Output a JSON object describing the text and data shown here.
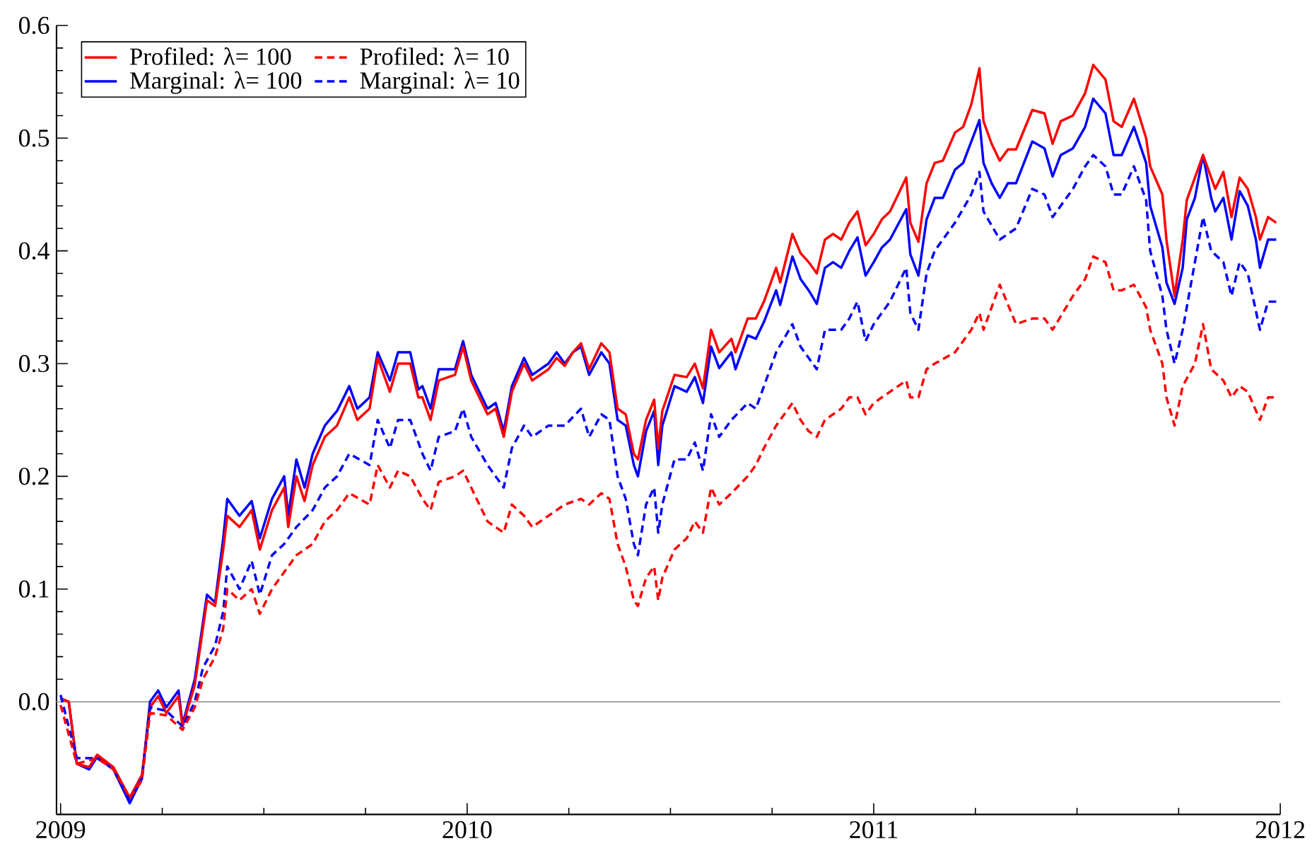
{
  "chart_data": {
    "type": "line",
    "xlim": [
      2008.99,
      2012.0
    ],
    "ylim": [
      -0.1,
      0.6
    ],
    "xticks": [
      2009,
      2010,
      2011,
      2012
    ],
    "yticks": [
      {
        "value": 0.0,
        "label": "0.0"
      },
      {
        "value": 0.1,
        "label": "0.1"
      },
      {
        "value": 0.2,
        "label": "0.2"
      },
      {
        "value": 0.3,
        "label": "0.3"
      },
      {
        "value": 0.4,
        "label": "0.4"
      },
      {
        "value": 0.5,
        "label": "0.5"
      },
      {
        "value": 0.6,
        "label": "0.6"
      }
    ],
    "legend": "top left",
    "ref_lines": [
      {
        "axis": "y",
        "value": 0,
        "color": "#aaaaaa"
      }
    ],
    "series": [
      {
        "name": "Profiled: λ= 100",
        "color": "#ff0000",
        "line_style": "solid",
        "x": [
          2009.0,
          2009.02,
          2009.04,
          2009.07,
          2009.09,
          2009.13,
          2009.17,
          2009.2,
          2009.22,
          2009.24,
          2009.26,
          2009.29,
          2009.3,
          2009.33,
          2009.35,
          2009.36,
          2009.38,
          2009.4,
          2009.41,
          2009.44,
          2009.47,
          2009.49,
          2009.52,
          2009.55,
          2009.56,
          2009.58,
          2009.6,
          2009.62,
          2009.65,
          2009.68,
          2009.71,
          2009.73,
          2009.76,
          2009.78,
          2009.81,
          2009.83,
          2009.86,
          2009.88,
          2009.89,
          2009.91,
          2009.93,
          2009.97,
          2009.99,
          2010.01,
          2010.05,
          2010.07,
          2010.09,
          2010.11,
          2010.14,
          2010.16,
          2010.2,
          2010.22,
          2010.24,
          2010.26,
          2010.28,
          2010.3,
          2010.33,
          2010.35,
          2010.37,
          2010.39,
          2010.41,
          2010.42,
          2010.44,
          2010.46,
          2010.47,
          2010.48,
          2010.51,
          2010.54,
          2010.56,
          2010.58,
          2010.6,
          2010.62,
          2010.65,
          2010.66,
          2010.69,
          2010.71,
          2010.73,
          2010.76,
          2010.77,
          2010.8,
          2010.82,
          2010.84,
          2010.86,
          2010.88,
          2010.9,
          2010.92,
          2010.94,
          2010.96,
          2010.98,
          2011.0,
          2011.02,
          2011.04,
          2011.08,
          2011.09,
          2011.11,
          2011.13,
          2011.15,
          2011.17,
          2011.2,
          2011.22,
          2011.24,
          2011.26,
          2011.27,
          2011.29,
          2011.31,
          2011.33,
          2011.35,
          2011.39,
          2011.42,
          2011.44,
          2011.46,
          2011.49,
          2011.52,
          2011.54,
          2011.57,
          2011.59,
          2011.61,
          2011.64,
          2011.67,
          2011.68,
          2011.71,
          2011.72,
          2011.74,
          2011.76,
          2011.77,
          2011.79,
          2011.81,
          2011.83,
          2011.84,
          2011.86,
          2011.88,
          2011.9,
          2011.92,
          2011.94,
          2011.95,
          2011.97,
          2011.99
        ],
        "values": [
          0.003,
          0.0,
          -0.055,
          -0.058,
          -0.047,
          -0.058,
          -0.085,
          -0.065,
          -0.005,
          0.005,
          -0.01,
          0.005,
          -0.022,
          0.015,
          0.065,
          0.09,
          0.085,
          0.135,
          0.165,
          0.155,
          0.17,
          0.135,
          0.17,
          0.19,
          0.155,
          0.2,
          0.178,
          0.21,
          0.235,
          0.245,
          0.27,
          0.25,
          0.26,
          0.305,
          0.275,
          0.3,
          0.3,
          0.27,
          0.27,
          0.25,
          0.285,
          0.29,
          0.315,
          0.285,
          0.255,
          0.26,
          0.235,
          0.275,
          0.3,
          0.285,
          0.295,
          0.305,
          0.298,
          0.31,
          0.318,
          0.295,
          0.318,
          0.31,
          0.26,
          0.255,
          0.22,
          0.215,
          0.25,
          0.268,
          0.225,
          0.258,
          0.29,
          0.288,
          0.3,
          0.278,
          0.33,
          0.31,
          0.322,
          0.31,
          0.34,
          0.34,
          0.355,
          0.385,
          0.372,
          0.415,
          0.398,
          0.39,
          0.38,
          0.41,
          0.415,
          0.41,
          0.425,
          0.435,
          0.405,
          0.415,
          0.428,
          0.435,
          0.465,
          0.425,
          0.408,
          0.46,
          0.478,
          0.48,
          0.505,
          0.51,
          0.53,
          0.562,
          0.515,
          0.495,
          0.48,
          0.49,
          0.49,
          0.525,
          0.522,
          0.495,
          0.515,
          0.52,
          0.54,
          0.565,
          0.552,
          0.515,
          0.51,
          0.535,
          0.5,
          0.475,
          0.45,
          0.41,
          0.36,
          0.41,
          0.445,
          0.465,
          0.485,
          0.465,
          0.455,
          0.47,
          0.43,
          0.465,
          0.455,
          0.43,
          0.41,
          0.43,
          0.425
        ]
      },
      {
        "name": "Profiled: λ= 10",
        "color": "#ff0000",
        "line_style": "dashed",
        "x": [
          2009.0,
          2009.04,
          2009.09,
          2009.13,
          2009.17,
          2009.2,
          2009.22,
          2009.26,
          2009.3,
          2009.33,
          2009.35,
          2009.38,
          2009.4,
          2009.41,
          2009.44,
          2009.47,
          2009.49,
          2009.52,
          2009.55,
          2009.58,
          2009.62,
          2009.65,
          2009.68,
          2009.71,
          2009.76,
          2009.78,
          2009.81,
          2009.83,
          2009.86,
          2009.89,
          2009.91,
          2009.93,
          2009.97,
          2009.99,
          2010.01,
          2010.05,
          2010.09,
          2010.11,
          2010.14,
          2010.16,
          2010.2,
          2010.24,
          2010.28,
          2010.3,
          2010.33,
          2010.35,
          2010.37,
          2010.39,
          2010.41,
          2010.42,
          2010.44,
          2010.46,
          2010.47,
          2010.48,
          2010.51,
          2010.54,
          2010.56,
          2010.58,
          2010.6,
          2010.62,
          2010.65,
          2010.69,
          2010.71,
          2010.73,
          2010.76,
          2010.8,
          2010.82,
          2010.84,
          2010.86,
          2010.88,
          2010.92,
          2010.94,
          2010.96,
          2010.98,
          2011.0,
          2011.04,
          2011.08,
          2011.09,
          2011.11,
          2011.13,
          2011.15,
          2011.2,
          2011.24,
          2011.26,
          2011.27,
          2011.31,
          2011.35,
          2011.39,
          2011.42,
          2011.44,
          2011.49,
          2011.52,
          2011.54,
          2011.57,
          2011.59,
          2011.61,
          2011.64,
          2011.67,
          2011.68,
          2011.71,
          2011.72,
          2011.74,
          2011.76,
          2011.79,
          2011.81,
          2011.83,
          2011.86,
          2011.88,
          2011.9,
          2011.92,
          2011.95,
          2011.97,
          2011.99
        ],
        "values": [
          -0.003,
          -0.055,
          -0.05,
          -0.06,
          -0.085,
          -0.07,
          -0.01,
          -0.012,
          -0.025,
          -0.005,
          0.02,
          0.04,
          0.065,
          0.1,
          0.09,
          0.1,
          0.078,
          0.1,
          0.115,
          0.13,
          0.14,
          0.16,
          0.17,
          0.185,
          0.175,
          0.21,
          0.19,
          0.205,
          0.2,
          0.18,
          0.17,
          0.195,
          0.2,
          0.205,
          0.19,
          0.16,
          0.15,
          0.175,
          0.165,
          0.155,
          0.165,
          0.175,
          0.18,
          0.175,
          0.185,
          0.18,
          0.14,
          0.12,
          0.09,
          0.085,
          0.11,
          0.12,
          0.09,
          0.11,
          0.135,
          0.145,
          0.16,
          0.15,
          0.19,
          0.175,
          0.185,
          0.2,
          0.21,
          0.225,
          0.245,
          0.265,
          0.25,
          0.24,
          0.235,
          0.25,
          0.26,
          0.27,
          0.27,
          0.255,
          0.265,
          0.275,
          0.285,
          0.27,
          0.27,
          0.295,
          0.3,
          0.31,
          0.33,
          0.345,
          0.33,
          0.37,
          0.335,
          0.34,
          0.34,
          0.33,
          0.36,
          0.375,
          0.395,
          0.39,
          0.365,
          0.365,
          0.37,
          0.35,
          0.33,
          0.3,
          0.27,
          0.245,
          0.28,
          0.3,
          0.335,
          0.295,
          0.285,
          0.27,
          0.28,
          0.275,
          0.25,
          0.27,
          0.27
        ]
      },
      {
        "name": "Marginal: λ= 100",
        "color": "#0000ff",
        "line_style": "solid",
        "x": [
          2009.0,
          2009.02,
          2009.04,
          2009.07,
          2009.09,
          2009.13,
          2009.17,
          2009.2,
          2009.22,
          2009.24,
          2009.26,
          2009.29,
          2009.3,
          2009.33,
          2009.35,
          2009.36,
          2009.38,
          2009.4,
          2009.41,
          2009.44,
          2009.47,
          2009.49,
          2009.52,
          2009.55,
          2009.56,
          2009.58,
          2009.6,
          2009.62,
          2009.65,
          2009.68,
          2009.71,
          2009.73,
          2009.76,
          2009.78,
          2009.81,
          2009.83,
          2009.86,
          2009.88,
          2009.89,
          2009.91,
          2009.93,
          2009.97,
          2009.99,
          2010.01,
          2010.05,
          2010.07,
          2010.09,
          2010.11,
          2010.14,
          2010.16,
          2010.2,
          2010.22,
          2010.24,
          2010.26,
          2010.28,
          2010.3,
          2010.33,
          2010.35,
          2010.37,
          2010.39,
          2010.41,
          2010.42,
          2010.44,
          2010.46,
          2010.47,
          2010.48,
          2010.51,
          2010.54,
          2010.56,
          2010.58,
          2010.6,
          2010.62,
          2010.65,
          2010.66,
          2010.69,
          2010.71,
          2010.73,
          2010.76,
          2010.77,
          2010.8,
          2010.82,
          2010.84,
          2010.86,
          2010.88,
          2010.9,
          2010.92,
          2010.94,
          2010.96,
          2010.98,
          2011.0,
          2011.02,
          2011.04,
          2011.08,
          2011.09,
          2011.11,
          2011.13,
          2011.15,
          2011.17,
          2011.2,
          2011.22,
          2011.24,
          2011.26,
          2011.27,
          2011.29,
          2011.31,
          2011.33,
          2011.35,
          2011.39,
          2011.42,
          2011.44,
          2011.46,
          2011.49,
          2011.52,
          2011.54,
          2011.57,
          2011.59,
          2011.61,
          2011.64,
          2011.67,
          2011.68,
          2011.71,
          2011.72,
          2011.74,
          2011.76,
          2011.77,
          2011.79,
          2011.81,
          2011.83,
          2011.84,
          2011.86,
          2011.88,
          2011.9,
          2011.92,
          2011.94,
          2011.95,
          2011.97,
          2011.99
        ],
        "values": [
          0.003,
          0.0,
          -0.055,
          -0.06,
          -0.049,
          -0.06,
          -0.09,
          -0.068,
          0.0,
          0.01,
          -0.005,
          0.01,
          -0.02,
          0.02,
          0.07,
          0.095,
          0.088,
          0.145,
          0.18,
          0.165,
          0.178,
          0.145,
          0.18,
          0.2,
          0.165,
          0.215,
          0.19,
          0.22,
          0.245,
          0.258,
          0.28,
          0.26,
          0.27,
          0.31,
          0.285,
          0.31,
          0.31,
          0.277,
          0.28,
          0.26,
          0.295,
          0.295,
          0.32,
          0.29,
          0.26,
          0.265,
          0.24,
          0.28,
          0.305,
          0.29,
          0.3,
          0.31,
          0.3,
          0.31,
          0.315,
          0.29,
          0.31,
          0.3,
          0.25,
          0.245,
          0.21,
          0.2,
          0.24,
          0.258,
          0.21,
          0.245,
          0.28,
          0.275,
          0.288,
          0.265,
          0.315,
          0.296,
          0.31,
          0.295,
          0.325,
          0.322,
          0.337,
          0.365,
          0.352,
          0.395,
          0.375,
          0.365,
          0.353,
          0.385,
          0.39,
          0.385,
          0.4,
          0.412,
          0.378,
          0.39,
          0.403,
          0.41,
          0.437,
          0.397,
          0.378,
          0.428,
          0.447,
          0.447,
          0.472,
          0.478,
          0.497,
          0.516,
          0.478,
          0.46,
          0.447,
          0.46,
          0.46,
          0.497,
          0.491,
          0.466,
          0.485,
          0.491,
          0.51,
          0.535,
          0.522,
          0.485,
          0.485,
          0.51,
          0.478,
          0.44,
          0.403,
          0.372,
          0.353,
          0.385,
          0.428,
          0.447,
          0.485,
          0.447,
          0.435,
          0.447,
          0.41,
          0.453,
          0.44,
          0.41,
          0.385,
          0.41,
          0.41
        ]
      },
      {
        "name": "Marginal: λ= 10",
        "color": "#0000ff",
        "line_style": "dashed",
        "x": [
          2009.0,
          2009.04,
          2009.09,
          2009.13,
          2009.17,
          2009.2,
          2009.22,
          2009.26,
          2009.3,
          2009.33,
          2009.35,
          2009.38,
          2009.4,
          2009.41,
          2009.44,
          2009.47,
          2009.49,
          2009.52,
          2009.55,
          2009.58,
          2009.62,
          2009.65,
          2009.68,
          2009.71,
          2009.76,
          2009.78,
          2009.81,
          2009.83,
          2009.86,
          2009.89,
          2009.91,
          2009.93,
          2009.97,
          2009.99,
          2010.01,
          2010.05,
          2010.09,
          2010.11,
          2010.14,
          2010.16,
          2010.2,
          2010.24,
          2010.28,
          2010.3,
          2010.33,
          2010.35,
          2010.37,
          2010.39,
          2010.41,
          2010.42,
          2010.44,
          2010.46,
          2010.47,
          2010.48,
          2010.51,
          2010.54,
          2010.56,
          2010.58,
          2010.6,
          2010.62,
          2010.65,
          2010.69,
          2010.71,
          2010.73,
          2010.76,
          2010.8,
          2010.82,
          2010.84,
          2010.86,
          2010.88,
          2010.92,
          2010.94,
          2010.96,
          2010.98,
          2011.0,
          2011.04,
          2011.08,
          2011.09,
          2011.11,
          2011.13,
          2011.15,
          2011.2,
          2011.24,
          2011.26,
          2011.27,
          2011.31,
          2011.35,
          2011.39,
          2011.42,
          2011.44,
          2011.49,
          2011.52,
          2011.54,
          2011.57,
          2011.59,
          2011.61,
          2011.64,
          2011.67,
          2011.68,
          2011.71,
          2011.72,
          2011.74,
          2011.76,
          2011.79,
          2011.81,
          2011.83,
          2011.86,
          2011.88,
          2011.9,
          2011.92,
          2011.95,
          2011.97,
          2011.99
        ],
        "values": [
          0.006,
          -0.05,
          -0.05,
          -0.06,
          -0.088,
          -0.068,
          -0.005,
          -0.008,
          -0.022,
          0.0,
          0.03,
          0.05,
          0.08,
          0.12,
          0.1,
          0.125,
          0.095,
          0.13,
          0.14,
          0.155,
          0.17,
          0.19,
          0.2,
          0.22,
          0.21,
          0.25,
          0.225,
          0.25,
          0.25,
          0.22,
          0.205,
          0.235,
          0.24,
          0.26,
          0.235,
          0.21,
          0.19,
          0.225,
          0.245,
          0.235,
          0.245,
          0.245,
          0.26,
          0.235,
          0.255,
          0.25,
          0.2,
          0.18,
          0.14,
          0.13,
          0.175,
          0.19,
          0.15,
          0.175,
          0.215,
          0.215,
          0.23,
          0.205,
          0.255,
          0.235,
          0.25,
          0.265,
          0.26,
          0.28,
          0.31,
          0.335,
          0.315,
          0.305,
          0.295,
          0.33,
          0.33,
          0.34,
          0.355,
          0.32,
          0.335,
          0.355,
          0.385,
          0.345,
          0.33,
          0.38,
          0.4,
          0.425,
          0.45,
          0.47,
          0.435,
          0.41,
          0.42,
          0.455,
          0.45,
          0.43,
          0.455,
          0.475,
          0.485,
          0.475,
          0.45,
          0.45,
          0.475,
          0.445,
          0.4,
          0.36,
          0.33,
          0.3,
          0.33,
          0.39,
          0.43,
          0.4,
          0.39,
          0.36,
          0.39,
          0.38,
          0.33,
          0.355,
          0.355
        ]
      }
    ]
  }
}
